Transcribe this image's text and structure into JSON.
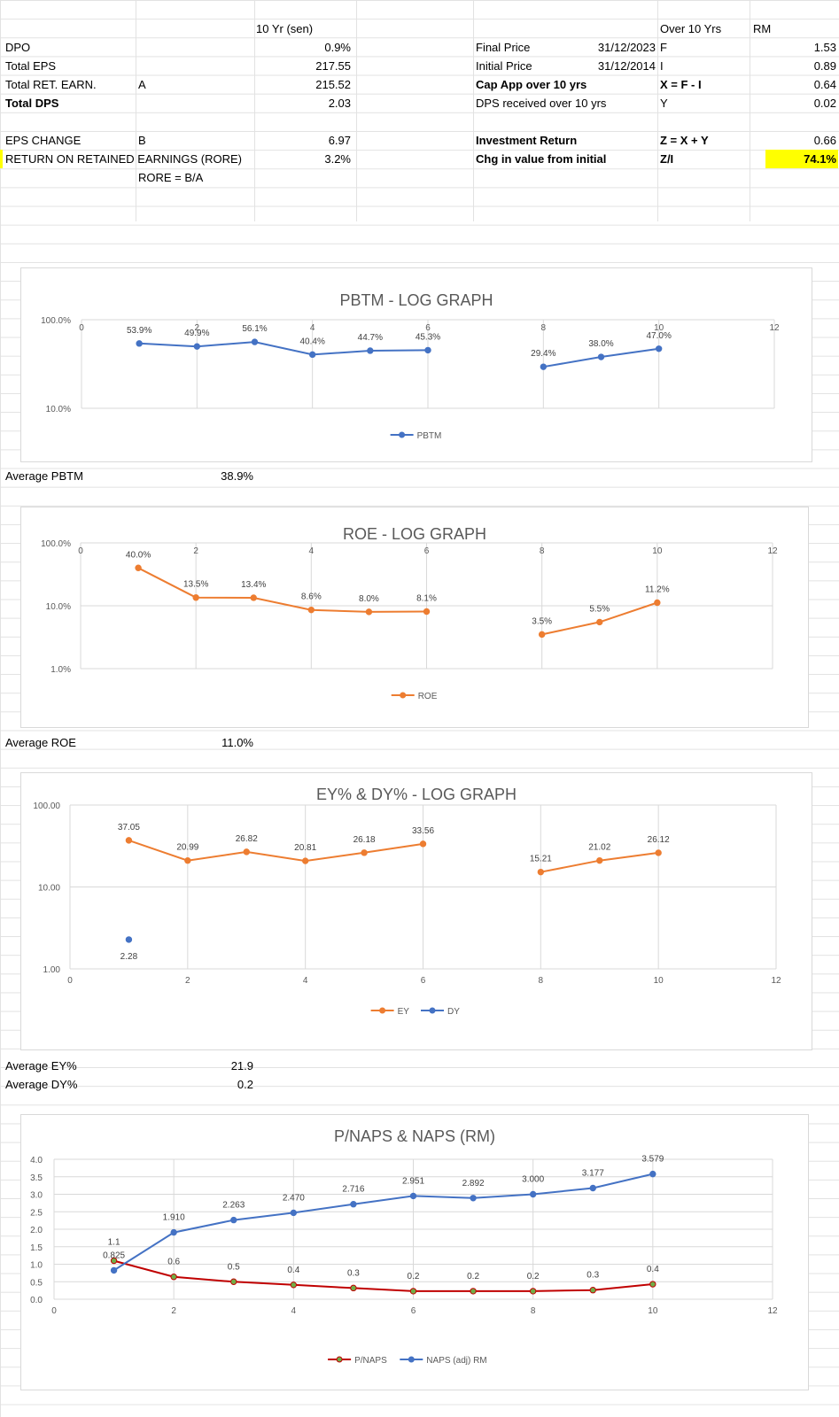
{
  "summary_left": {
    "header": "10 Yr (sen)",
    "rows": [
      {
        "label": "DPO",
        "ref": "",
        "value": "0.9%",
        "bold": false
      },
      {
        "label": "Total EPS",
        "ref": "",
        "value": "217.55",
        "bold": false
      },
      {
        "label": "Total RET. EARN.",
        "ref": "A",
        "value": "215.52",
        "bold": false
      },
      {
        "label": "Total DPS",
        "ref": "",
        "value": "2.03",
        "bold": true
      },
      {
        "label": "EPS CHANGE",
        "ref": "B",
        "value": "6.97",
        "bold": false
      },
      {
        "label": "RETURN ON RETAINED EARNINGS (RORE)",
        "ref": "",
        "value": "3.2%",
        "bold": false
      }
    ],
    "formula": "RORE = B/A"
  },
  "summary_right": {
    "header1": "Over 10 Yrs",
    "header2": "RM",
    "rows": [
      {
        "label": "Final Price",
        "date": "31/12/2023",
        "code": "F",
        "value": "1.53"
      },
      {
        "label": "Initial Price",
        "date": "31/12/2014",
        "code": "I",
        "value": "0.89"
      },
      {
        "label": "Cap App over 10 yrs",
        "date": "",
        "code": "X = F - I",
        "value": "0.64"
      },
      {
        "label": "DPS received over 10 yrs",
        "date": "",
        "code": "Y",
        "value": "0.02"
      },
      {
        "label": "Investment Return",
        "date": "",
        "code": "Z = X + Y",
        "value": "0.66"
      },
      {
        "label": "Chg in value from initial",
        "date": "",
        "code": "Z/I",
        "value": "74.1%"
      }
    ]
  },
  "averages": {
    "pbtm_label": "Average PBTM",
    "pbtm": "38.9%",
    "roe_label": "Average ROE",
    "roe": "11.0%",
    "ey_label": "Average EY%",
    "ey": "21.9",
    "dy_label": "Average DY%",
    "dy": "0.2"
  },
  "colors": {
    "blue": "#4472c4",
    "orange": "#ed7d31",
    "red": "#c00000",
    "olive": "#70ad47",
    "yellow": "#ffff00",
    "axis": "#d9d9d9"
  },
  "chart_data": [
    {
      "type": "line",
      "title": "PBTM - LOG GRAPH",
      "scale": "log",
      "xlim": [
        0,
        12
      ],
      "xticks": [
        0,
        2,
        4,
        6,
        8,
        10,
        12
      ],
      "ylim": [
        0.1,
        1.0
      ],
      "yticks": [
        "100.0%",
        "10.0%"
      ],
      "series": [
        {
          "name": "PBTM",
          "color": "#4472c4",
          "x": [
            1,
            2,
            3,
            4,
            5,
            6,
            8,
            9,
            10
          ],
          "y": [
            0.539,
            0.499,
            0.561,
            0.404,
            0.447,
            0.453,
            0.294,
            0.38,
            0.47
          ],
          "labels": [
            "53.9%",
            "49.9%",
            "56.1%",
            "40.4%",
            "44.7%",
            "45.3%",
            "29.4%",
            "38.0%",
            "47.0%"
          ],
          "segments": [
            [
              0,
              5
            ],
            [
              6,
              8
            ]
          ]
        }
      ]
    },
    {
      "type": "line",
      "title": "ROE - LOG GRAPH",
      "scale": "log",
      "xlim": [
        0,
        12
      ],
      "xticks": [
        0,
        2,
        4,
        6,
        8,
        10,
        12
      ],
      "ylim": [
        0.01,
        1.0
      ],
      "yticks": [
        "100.0%",
        "10.0%",
        "1.0%"
      ],
      "series": [
        {
          "name": "ROE",
          "color": "#ed7d31",
          "x": [
            1,
            2,
            3,
            4,
            5,
            6,
            8,
            9,
            10
          ],
          "y": [
            0.4,
            0.135,
            0.134,
            0.086,
            0.08,
            0.081,
            0.035,
            0.055,
            0.112
          ],
          "labels": [
            "40.0%",
            "13.5%",
            "13.4%",
            "8.6%",
            "8.0%",
            "8.1%",
            "3.5%",
            "5.5%",
            "11.2%"
          ],
          "segments": [
            [
              0,
              5
            ],
            [
              6,
              8
            ]
          ]
        }
      ]
    },
    {
      "type": "line",
      "title": "EY% & DY% - LOG GRAPH",
      "scale": "log",
      "xlim": [
        0,
        12
      ],
      "xticks": [
        0,
        2,
        4,
        6,
        8,
        10,
        12
      ],
      "ylim": [
        1,
        100
      ],
      "yticks": [
        "100.00",
        "10.00",
        "1.00"
      ],
      "series": [
        {
          "name": "EY",
          "color": "#ed7d31",
          "x": [
            1,
            2,
            3,
            4,
            5,
            6,
            8,
            9,
            10
          ],
          "y": [
            37.05,
            20.99,
            26.82,
            20.81,
            26.18,
            33.56,
            15.21,
            21.02,
            26.12
          ],
          "labels": [
            "37.05",
            "20.99",
            "26.82",
            "20.81",
            "26.18",
            "33.56",
            "15.21",
            "21.02",
            "26.12"
          ],
          "segments": [
            [
              0,
              5
            ],
            [
              6,
              8
            ]
          ]
        },
        {
          "name": "DY",
          "color": "#4472c4",
          "x": [
            1
          ],
          "y": [
            2.28
          ],
          "labels": [
            "2.28"
          ],
          "segments": [
            [
              0,
              0
            ]
          ]
        }
      ]
    },
    {
      "type": "line",
      "title": "P/NAPS & NAPS (RM)",
      "scale": "linear",
      "xlim": [
        0,
        12
      ],
      "xticks": [
        0,
        2,
        4,
        6,
        8,
        10,
        12
      ],
      "ylim": [
        0,
        4
      ],
      "yticks": [
        "4.0",
        "3.5",
        "3.0",
        "2.5",
        "2.0",
        "1.5",
        "1.0",
        "0.5",
        "0.0"
      ],
      "series": [
        {
          "name": "P/NAPS",
          "color": "#c00000",
          "marker": "#70ad47",
          "x": [
            1,
            2,
            3,
            4,
            5,
            6,
            7,
            8,
            9,
            10
          ],
          "y": [
            1.1,
            0.64,
            0.5,
            0.41,
            0.32,
            0.23,
            0.23,
            0.23,
            0.26,
            0.43
          ],
          "labels": [
            "1.1",
            "0.6",
            "0.5",
            "0.4",
            "0.3",
            "0.2",
            "0.2",
            "0.2",
            "0.3",
            "0.4"
          ],
          "segments": [
            [
              0,
              9
            ]
          ]
        },
        {
          "name": "NAPS (adj) RM",
          "color": "#4472c4",
          "x": [
            1,
            2,
            3,
            4,
            5,
            6,
            7,
            8,
            9,
            10
          ],
          "y": [
            0.825,
            1.91,
            2.263,
            2.47,
            2.716,
            2.951,
            2.892,
            3.0,
            3.177,
            3.579
          ],
          "labels": [
            "0.825",
            "1.910",
            "2.263",
            "2.470",
            "2.716",
            "2.951",
            "2.892",
            "3.000",
            "3.177",
            "3.579"
          ],
          "segments": [
            [
              0,
              9
            ]
          ]
        }
      ]
    }
  ]
}
